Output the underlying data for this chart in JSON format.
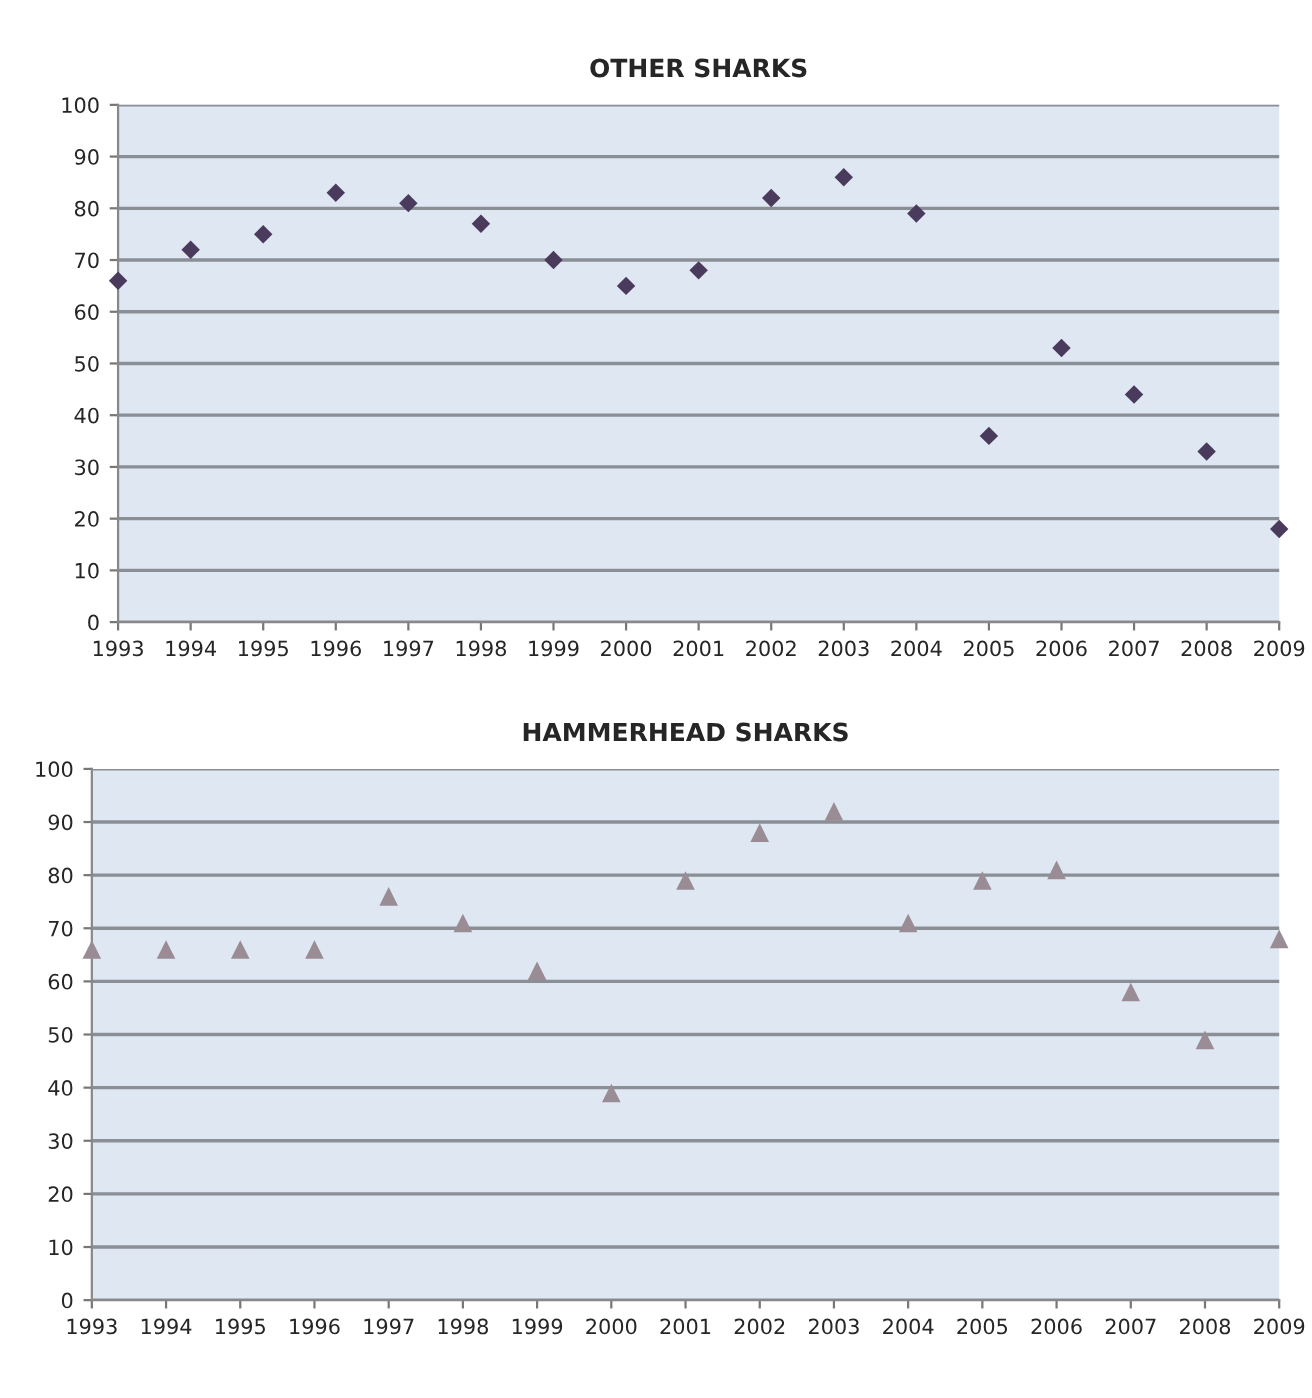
{
  "chart_data": [
    {
      "type": "scatter",
      "title": "OTHER SHARKS",
      "x": [
        1993,
        1994,
        1995,
        1996,
        1997,
        1998,
        1999,
        2000,
        2001,
        2002,
        2003,
        2004,
        2005,
        2006,
        2007,
        2008,
        2009
      ],
      "series": [
        {
          "color": "#4a3a5c",
          "values": [
            66,
            72,
            75,
            83,
            81,
            77,
            70,
            65,
            68,
            82,
            86,
            79,
            36,
            53,
            44,
            33,
            18
          ]
        }
      ],
      "marker": "diamond",
      "xlim": [
        1993,
        2009
      ],
      "xticks": [
        1993,
        1994,
        1995,
        1996,
        1997,
        1998,
        1999,
        2000,
        2001,
        2002,
        2003,
        2004,
        2005,
        2006,
        2007,
        2008,
        2009
      ],
      "ylim": [
        0,
        100
      ],
      "yticks": [
        0,
        10,
        20,
        30,
        40,
        50,
        60,
        70,
        80,
        90,
        100
      ],
      "grid": "y"
    },
    {
      "type": "scatter",
      "title": "HAMMERHEAD SHARKS",
      "x": [
        1993,
        1994,
        1995,
        1996,
        1997,
        1998,
        1999,
        2000,
        2001,
        2002,
        2003,
        2004,
        2005,
        2006,
        2007,
        2008,
        2009
      ],
      "series": [
        {
          "color": "#9a8c94",
          "values": [
            66,
            66,
            66,
            66,
            76,
            71,
            62,
            39,
            79,
            88,
            92,
            71,
            79,
            81,
            58,
            49,
            68
          ]
        }
      ],
      "marker": "triangle",
      "xlim": [
        1993,
        2009
      ],
      "xticks": [
        1993,
        1994,
        1995,
        1996,
        1997,
        1998,
        1999,
        2000,
        2001,
        2002,
        2003,
        2004,
        2005,
        2006,
        2007,
        2008,
        2009
      ],
      "ylim": [
        0,
        100
      ],
      "yticks": [
        0,
        10,
        20,
        30,
        40,
        50,
        60,
        70,
        80,
        90,
        100
      ],
      "grid": "y"
    }
  ]
}
